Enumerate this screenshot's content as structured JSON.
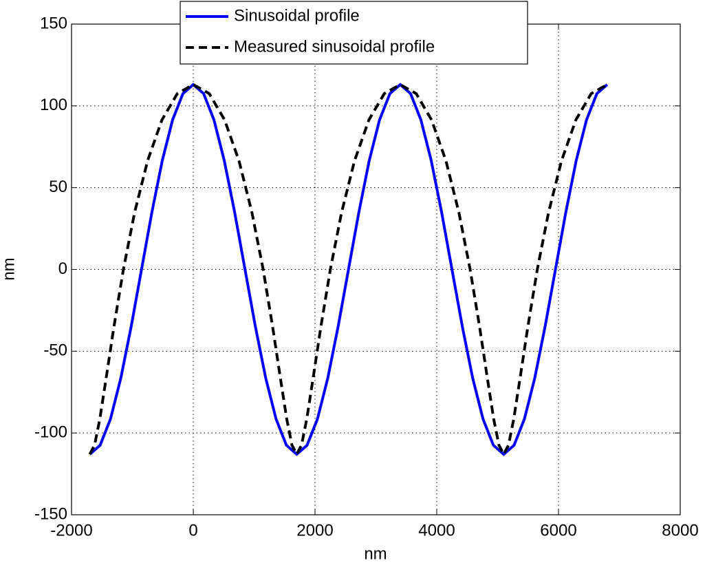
{
  "chart_data": {
    "type": "line",
    "xlabel": "nm",
    "ylabel": "nm",
    "xlim": [
      -2000,
      8000
    ],
    "xticks": [
      -2000,
      0,
      2000,
      4000,
      6000,
      8000
    ],
    "ylim": [
      -150,
      150
    ],
    "yticks": [
      -150,
      -100,
      -50,
      0,
      50,
      100,
      150
    ],
    "grid": true,
    "legend": "top-left",
    "series": [
      {
        "name": "Sinusoidal profile",
        "color": "#0000ff",
        "style": "solid",
        "x": [
          -1700,
          -1530,
          -1360,
          -1190,
          -1020,
          -850,
          -680,
          -510,
          -340,
          -170,
          0,
          170,
          340,
          510,
          680,
          850,
          1020,
          1190,
          1360,
          1530,
          1700,
          1870,
          2040,
          2210,
          2380,
          2550,
          2720,
          2890,
          3060,
          3230,
          3400,
          3570,
          3740,
          3910,
          4080,
          4250,
          4420,
          4590,
          4760,
          4930,
          5100,
          5270,
          5440,
          5610,
          5780,
          5950,
          6120,
          6290,
          6460,
          6630,
          6800
        ],
        "values": [
          -113,
          -107.5,
          -91.4,
          -66.4,
          -34.9,
          0,
          34.9,
          66.4,
          91.4,
          107.5,
          113,
          107.5,
          91.4,
          66.4,
          34.9,
          0,
          -34.9,
          -66.4,
          -91.4,
          -107.5,
          -113,
          -107.5,
          -91.4,
          -66.4,
          -34.9,
          0,
          34.9,
          66.4,
          91.4,
          107.5,
          113,
          107.5,
          91.4,
          66.4,
          34.9,
          0,
          -34.9,
          -66.4,
          -91.4,
          -107.5,
          -113,
          -107.5,
          -91.4,
          -66.4,
          -34.9,
          0,
          34.9,
          66.4,
          91.4,
          107.5,
          113
        ]
      },
      {
        "name": "Measured sinusoidal profile",
        "color": "#000000",
        "style": "dashed",
        "x": [
          -1700,
          -1622,
          -1535,
          -1431,
          -1303,
          -1148,
          -963,
          -751,
          -515,
          -262,
          0,
          262,
          515,
          751,
          963,
          1148,
          1303,
          1431,
          1535,
          1622,
          1700,
          1778,
          1865,
          1969,
          2097,
          2252,
          2437,
          2649,
          2885,
          3138,
          3400,
          3662,
          3915,
          4151,
          4363,
          4548,
          4703,
          4831,
          4935,
          5022,
          5100,
          5178,
          5265,
          5369,
          5497,
          5652,
          5837,
          6049,
          6285,
          6538,
          6800
        ],
        "values": [
          -113,
          -107.5,
          -91.4,
          -66.4,
          -34.9,
          0,
          34.9,
          66.4,
          91.4,
          107.5,
          113,
          107.5,
          91.4,
          66.4,
          34.9,
          0,
          -34.9,
          -66.4,
          -91.4,
          -107.5,
          -113,
          -107.5,
          -91.4,
          -66.4,
          -34.9,
          0,
          34.9,
          66.4,
          91.4,
          107.5,
          113,
          107.5,
          91.4,
          66.4,
          34.9,
          0,
          -34.9,
          -66.4,
          -91.4,
          -107.5,
          -113,
          -107.5,
          -91.4,
          -66.4,
          -34.9,
          0,
          34.9,
          66.4,
          91.4,
          107.5,
          113
        ]
      }
    ]
  }
}
